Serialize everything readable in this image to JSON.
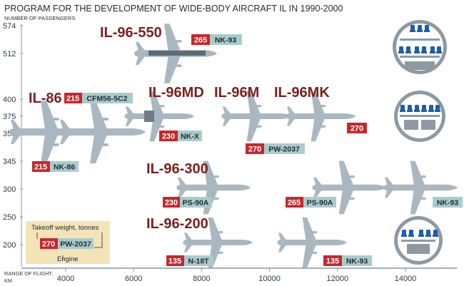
{
  "chart_data": {
    "type": "scatter",
    "title": "PROGRAM FOR THE DEVELOPMENT OF WIDE-BODY AIRCRAFT IL IN 1990-2000",
    "ylabel": "NUMBER OF PASSENGERS",
    "xlabel_lines": [
      "RANGE OF FLIGHT,",
      "KM"
    ],
    "x_ticks": [
      4000,
      6000,
      8000,
      10000,
      12000,
      14000
    ],
    "y_ticks": [
      200,
      250,
      300,
      345,
      350,
      375,
      400,
      512,
      574
    ],
    "grid": false,
    "models": [
      {
        "name": "IL-86",
        "passengers": 350,
        "range_km": [
          3000,
          5000
        ],
        "weight": "215",
        "engine": "NK-86",
        "weight_alt": "215",
        "engine_alt": "CFM56-5C2"
      },
      {
        "name": "IL-96-550",
        "passengers": 512,
        "range_km": [
          6300
        ],
        "weight": "265",
        "engine": "NK-93"
      },
      {
        "name": "IL-96MD",
        "passengers": 375,
        "range_km": [
          6700
        ],
        "weight": "230",
        "engine": "NK-X"
      },
      {
        "name": "IL-96M",
        "passengers": 375,
        "range_km": [
          9400
        ],
        "weight": "",
        "engine": ""
      },
      {
        "name": "IL-96MK",
        "passengers": 375,
        "range_km": [
          11300
        ],
        "weight": "270",
        "engine": "PW-2037",
        "weight_alt": "270"
      },
      {
        "name": "IL-96-300",
        "passengers": 300,
        "range_km": [
          8300,
          12300,
          14600
        ],
        "weight": "230",
        "engine": "PS-90A",
        "weight_alt": "265",
        "engine_alt": "PS-90A",
        "engine_far": "NK-93"
      },
      {
        "name": "IL-96-200",
        "passengers": 200,
        "range_km": [
          8300,
          11000
        ],
        "weight": "135",
        "engine": "N-18T",
        "weight_alt": "135",
        "engine_alt": "NK-93"
      }
    ],
    "legend": {
      "weight_label": "Takeoff weight, tonnes",
      "engine_label": "Engine",
      "weight_example": "270",
      "engine_example": "PW-2037"
    },
    "colors": {
      "model": "#7a1f1f",
      "weight": "#c8262d",
      "engine": "#a9cccb",
      "aircraft": "#a9b7c0",
      "axis": "#8b95a0"
    }
  }
}
